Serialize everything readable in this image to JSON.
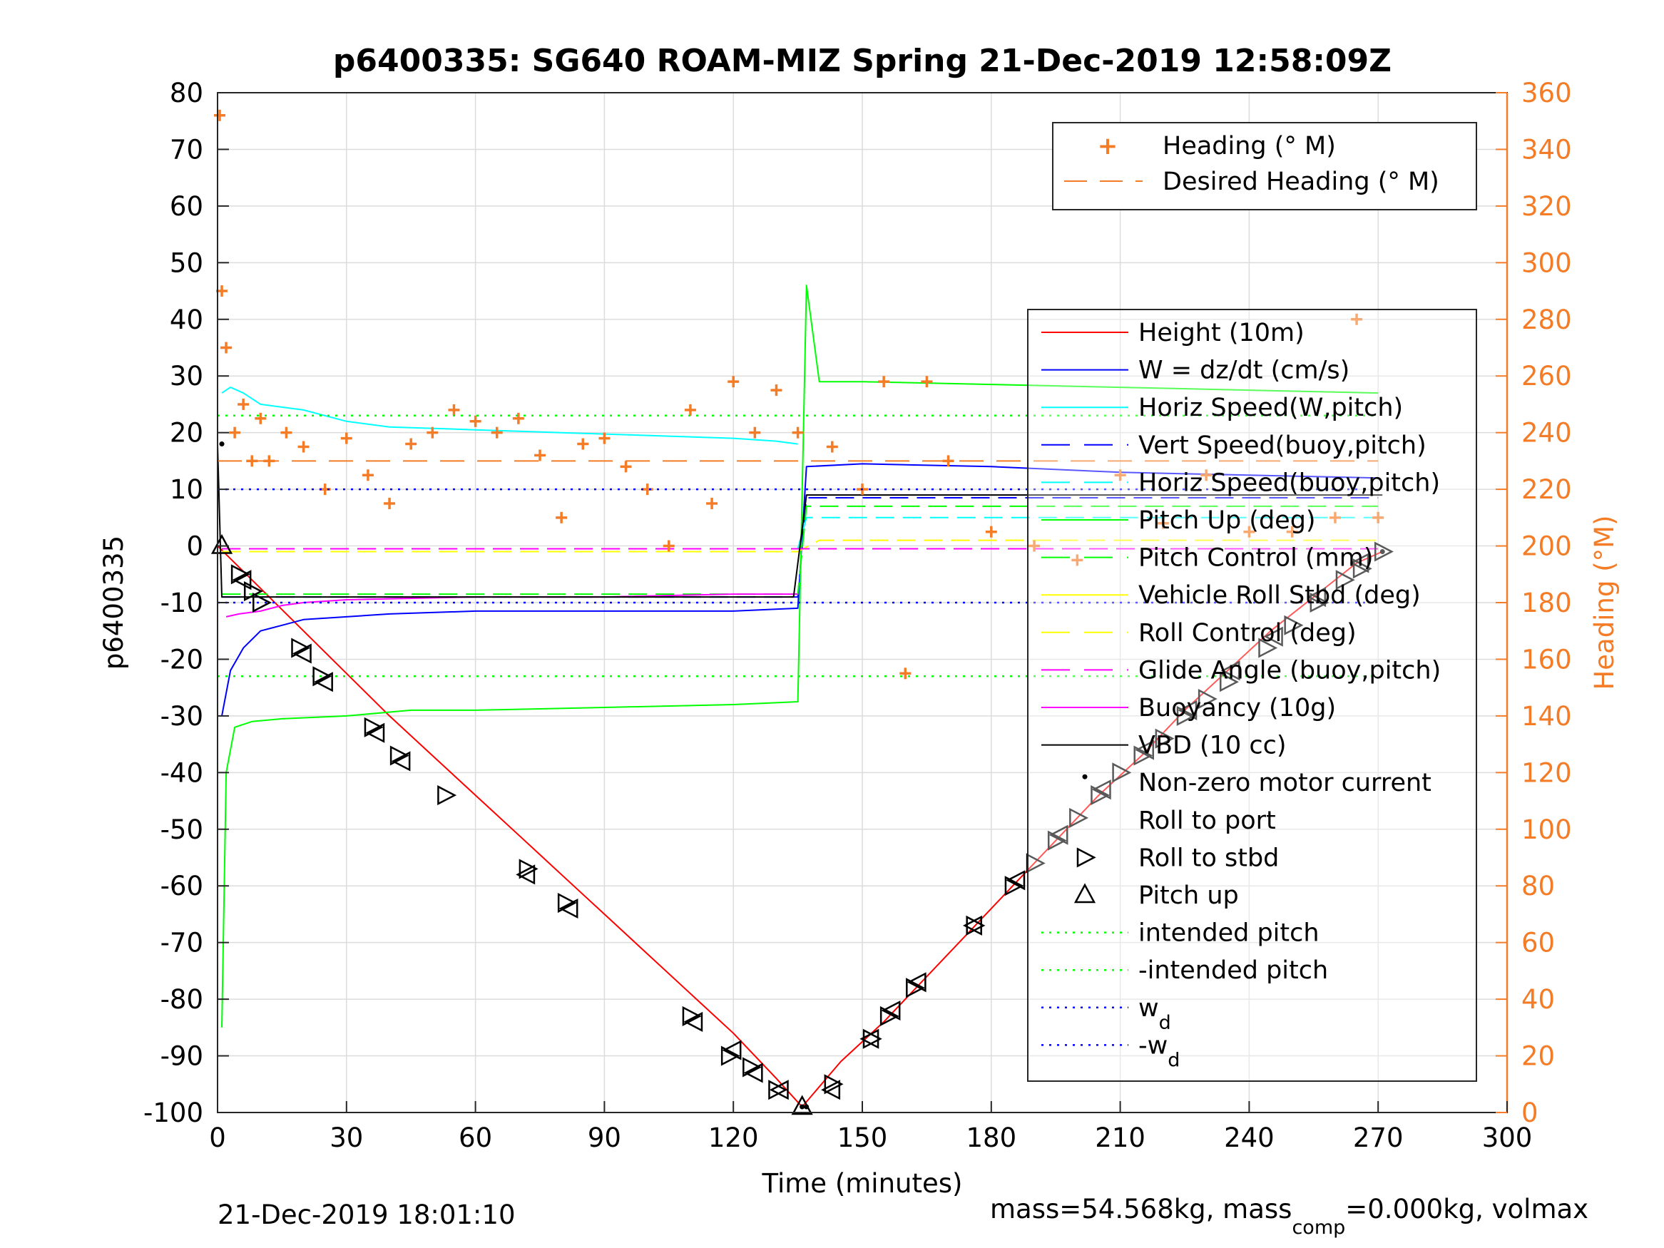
{
  "chart_data": {
    "type": "line",
    "title": "p6400335: SG640 ROAM-MIZ Spring 21-Dec-2019 12:58:09Z",
    "xlabel": "Time (minutes)",
    "ylabel": "p6400335",
    "ylabel_right": "Heading (°M)",
    "xlim": [
      0,
      300
    ],
    "ylim": [
      -100,
      80
    ],
    "ylim_right": [
      0,
      360
    ],
    "xticks": [
      "0",
      "30",
      "60",
      "90",
      "120",
      "150",
      "180",
      "210",
      "240",
      "270",
      "300"
    ],
    "yticks": [
      "80",
      "70",
      "60",
      "50",
      "40",
      "30",
      "20",
      "10",
      "0",
      "-10",
      "-20",
      "-30",
      "-40",
      "-50",
      "-60",
      "-70",
      "-80",
      "-90",
      "-100"
    ],
    "yticks_right": [
      "360",
      "340",
      "320",
      "300",
      "280",
      "260",
      "240",
      "220",
      "200",
      "180",
      "160",
      "140",
      "120",
      "100",
      "80",
      "60",
      "40",
      "20",
      "0"
    ],
    "grid": true,
    "footer_left": "21-Dec-2019 18:01:10",
    "footer_right_parts": [
      "mass=54.568kg, mass",
      "comp",
      "=0.000kg, volmax"
    ],
    "legend_top": {
      "placement": "top-right",
      "entries": [
        "Heading (° M)",
        "Desired Heading (° M)"
      ]
    },
    "legend_main": {
      "placement": "right",
      "entries": [
        "Height (10m)",
        "W = dz/dt (cm/s)",
        "Horiz Speed(W,pitch)",
        "Vert Speed(buoy,pitch)",
        "Horiz Speed(buoy,pitch)",
        "Pitch Up (deg)",
        "Pitch Control (mm)",
        "Vehicle Roll Stbd (deg)",
        "Roll Control (deg)",
        "Glide Angle (buoy,pitch)",
        "Buoyancy (10g)",
        "VBD (10 cc)",
        "Non-zero motor current",
        "Roll to port",
        "Roll to stbd",
        "Pitch up",
        "intended pitch",
        "-intended pitch",
        "w",
        "-w"
      ],
      "subscript": "d"
    },
    "colors": {
      "height": "#ff0000",
      "w": "#0000ff",
      "horiz_w": "#00ffff",
      "vert_buoy": "#0000ff",
      "horiz_buoy": "#00ffff",
      "pitch": "#00ff00",
      "pitch_ctrl": "#00ff00",
      "roll": "#ffff00",
      "roll_ctrl": "#ffff00",
      "glide": "#ff00ff",
      "buoyancy": "#ff00ff",
      "vbd": "#000000",
      "heading": "#f47c26",
      "intended": "#00ff00",
      "wd": "#0000ff"
    },
    "series": [
      {
        "name": "Height (10m)",
        "x": [
          0,
          10,
          20,
          30,
          40,
          50,
          60,
          70,
          80,
          90,
          100,
          110,
          120,
          130,
          136,
          145,
          155,
          165,
          175,
          185,
          195,
          205,
          215,
          225,
          235,
          245,
          255,
          265,
          271
        ],
        "values": [
          0,
          -7.5,
          -15,
          -22.5,
          -30,
          -37,
          -44,
          -51,
          -58,
          -65,
          -72,
          -79,
          -86,
          -94,
          -99,
          -91,
          -84,
          -76,
          -68,
          -60,
          -52,
          -44,
          -37,
          -29,
          -22,
          -15,
          -9,
          -3,
          -1
        ]
      },
      {
        "name": "W = dz/dt (cm/s)",
        "x": [
          1,
          3,
          6,
          10,
          15,
          20,
          30,
          40,
          60,
          80,
          100,
          120,
          135,
          137,
          150,
          180,
          210,
          240,
          270
        ],
        "values": [
          -30,
          -22,
          -18,
          -15,
          -14,
          -13,
          -12.5,
          -12,
          -11.5,
          -11.5,
          -11.5,
          -11.5,
          -11,
          14,
          14.5,
          14,
          13,
          12.5,
          12
        ]
      },
      {
        "name": "Horiz Speed(W,pitch)",
        "x": [
          1,
          3,
          6,
          10,
          20,
          30,
          40,
          60,
          80,
          100,
          120,
          130,
          135
        ],
        "values": [
          27,
          28,
          27,
          25,
          24,
          22,
          21,
          20.5,
          20,
          19.5,
          19,
          18.5,
          18
        ]
      },
      {
        "name": "Vert Speed(buoy,pitch)",
        "x": [
          1,
          10,
          30,
          60,
          90,
          120,
          135,
          137,
          180,
          240,
          270
        ],
        "values": [
          -9,
          -9,
          -9,
          -9,
          -9,
          -9,
          -9,
          8.5,
          8.5,
          8.5,
          8.5
        ]
      },
      {
        "name": "Horiz Speed(buoy,pitch)",
        "x": [
          1,
          10,
          30,
          60,
          90,
          120,
          135,
          137,
          180,
          240,
          270
        ],
        "values": [
          -0.5,
          -0.5,
          -0.5,
          -0.5,
          -0.5,
          -0.5,
          -0.5,
          5,
          5,
          5,
          5
        ]
      },
      {
        "name": "Pitch Up (deg)",
        "x": [
          1,
          2,
          4,
          8,
          15,
          30,
          45,
          60,
          90,
          120,
          135,
          137,
          140,
          150,
          180,
          210,
          240,
          270
        ],
        "values": [
          -85,
          -40,
          -32,
          -31,
          -30.5,
          -30,
          -29,
          -29,
          -28.5,
          -28,
          -27.5,
          46,
          29,
          29,
          28.5,
          28,
          27.5,
          27
        ]
      },
      {
        "name": "Pitch Control (mm)",
        "x": [
          1,
          10,
          30,
          60,
          90,
          120,
          135,
          137,
          180,
          240,
          270
        ],
        "values": [
          -8.5,
          -8.5,
          -8.5,
          -8.5,
          -8.5,
          -8.5,
          -8.5,
          7,
          7,
          7,
          7
        ]
      },
      {
        "name": "Roll Control (deg)",
        "x": [
          1,
          20,
          40,
          60,
          80,
          100,
          120,
          135,
          140,
          160,
          180,
          200,
          230,
          270
        ],
        "values": [
          -1,
          -1,
          -1,
          -1,
          -1,
          -1,
          -1,
          -1,
          1,
          1,
          1,
          1,
          1,
          1
        ]
      },
      {
        "name": "Glide Angle (buoy,pitch)",
        "x": [
          1,
          10,
          30,
          60,
          90,
          120,
          135,
          137,
          270
        ],
        "values": [
          -0.5,
          -0.5,
          -0.5,
          -0.5,
          -0.5,
          -0.5,
          -0.5,
          -0.5,
          -0.5
        ]
      },
      {
        "name": "Buoyancy (10g)",
        "x": [
          2,
          5,
          10,
          15,
          20,
          30,
          60,
          90,
          120,
          135
        ],
        "values": [
          -12.5,
          -12,
          -11.5,
          -10.5,
          -10,
          -9.5,
          -9,
          -9,
          -8.5,
          -8.5
        ]
      },
      {
        "name": "VBD (10 cc)",
        "x": [
          0,
          1,
          30,
          60,
          90,
          120,
          134,
          137,
          150,
          180,
          210,
          240,
          271
        ],
        "values": [
          18,
          -9,
          -9,
          -9,
          -9,
          -9,
          -9,
          9,
          9,
          9,
          9,
          9,
          9
        ]
      },
      {
        "name": "Heading (° M)",
        "x": [
          0.5,
          1,
          2,
          4,
          6,
          8,
          10,
          12,
          16,
          20,
          25,
          30,
          35,
          40,
          45,
          50,
          55,
          60,
          65,
          70,
          75,
          80,
          85,
          90,
          95,
          100,
          105,
          110,
          115,
          120,
          125,
          130,
          135,
          143,
          150,
          155,
          160,
          165,
          170,
          180,
          190,
          200,
          210,
          220,
          230,
          240,
          250,
          260,
          265,
          270
        ],
        "values": [
          352,
          290,
          270,
          240,
          250,
          230,
          245,
          230,
          240,
          235,
          220,
          238,
          225,
          215,
          236,
          240,
          248,
          244,
          240,
          245,
          232,
          210,
          236,
          238,
          228,
          220,
          200,
          248,
          215,
          258,
          240,
          255,
          240,
          235,
          220,
          258,
          155,
          258,
          230,
          205,
          200,
          195,
          225,
          208,
          225,
          205,
          205,
          210,
          280,
          210
        ]
      },
      {
        "name": "Desired Heading (° M)",
        "x": [
          0,
          60,
          120,
          135,
          137,
          180,
          240,
          270
        ],
        "values": [
          230,
          230,
          230,
          230,
          230,
          230,
          230,
          230
        ]
      },
      {
        "name": "intended pitch",
        "x": [
          0,
          270
        ],
        "values": [
          23,
          23
        ]
      },
      {
        "name": "-intended pitch",
        "x": [
          0,
          270
        ],
        "values": [
          -23,
          -23
        ]
      },
      {
        "name": "w",
        "x": [
          0,
          270
        ],
        "values": [
          10,
          10
        ]
      },
      {
        "name": "-w",
        "x": [
          0,
          270
        ],
        "values": [
          -10,
          -10
        ]
      },
      {
        "name": "Pitch up",
        "x": [
          1,
          136
        ],
        "values": [
          0,
          -99
        ]
      },
      {
        "name": "Roll to stbd",
        "x": [
          5,
          8,
          10,
          19,
          24,
          36,
          42,
          53,
          72,
          81,
          110,
          119,
          124,
          130,
          143,
          152,
          156,
          162,
          176,
          185,
          190,
          195,
          200,
          205,
          210,
          215,
          220,
          225,
          230,
          235,
          244,
          250,
          256,
          262,
          266,
          271
        ],
        "values": [
          -5,
          -8,
          -10,
          -18,
          -23,
          -32,
          -37,
          -44,
          -57,
          -63,
          -83,
          -90,
          -92,
          -96,
          -95,
          -87,
          -83,
          -78,
          -67,
          -60,
          -56,
          -52,
          -48,
          -44,
          -40,
          -37,
          -34,
          -30,
          -27,
          -24,
          -18,
          -14,
          -10,
          -6,
          -4,
          -1
        ]
      },
      {
        "name": "Roll to port",
        "x": [
          6,
          20,
          25,
          37,
          43,
          72,
          82,
          111,
          120,
          125,
          131,
          143,
          152,
          157,
          163,
          176,
          186,
          196,
          206,
          216,
          226,
          236,
          246,
          256,
          266
        ],
        "values": [
          -6,
          -19,
          -24,
          -33,
          -38,
          -58,
          -64,
          -84,
          -89,
          -93,
          -96,
          -96,
          -87,
          -82,
          -77,
          -67,
          -59,
          -51,
          -43,
          -36,
          -29,
          -22,
          -16,
          -9,
          -3
        ]
      },
      {
        "name": "Non-zero motor current",
        "x": [
          1,
          136,
          137,
          271
        ],
        "values": [
          18,
          -99,
          -99,
          -1
        ]
      }
    ]
  }
}
